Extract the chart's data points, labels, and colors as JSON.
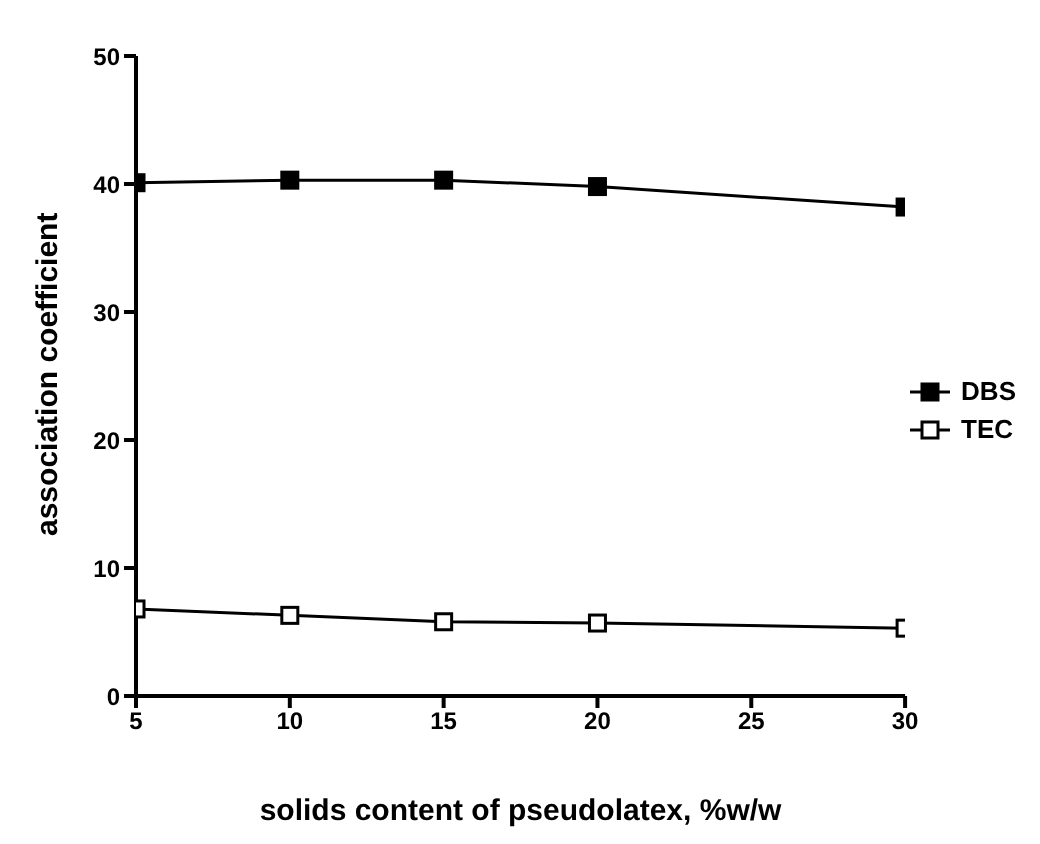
{
  "chart_data": {
    "type": "line",
    "xlabel": "solids content of pseudolatex, %w/w",
    "ylabel": "association coefficient",
    "x": [
      5,
      10,
      15,
      20,
      30
    ],
    "series": [
      {
        "name": "DBS",
        "color": "#000000",
        "values": [
          40.1,
          40.3,
          40.3,
          39.8,
          38.2
        ]
      },
      {
        "name": "TEC",
        "color": "#000000",
        "values": [
          6.8,
          6.3,
          5.8,
          5.7,
          5.3
        ]
      }
    ],
    "xlim": [
      5,
      30
    ],
    "xticks": [
      5,
      10,
      15,
      20,
      25,
      30
    ],
    "ylim": [
      0,
      50
    ],
    "yticks": [
      0,
      10,
      20,
      30,
      40,
      50
    ],
    "marker": "square",
    "line_style": "solid",
    "legend": "right",
    "grid": false
  }
}
